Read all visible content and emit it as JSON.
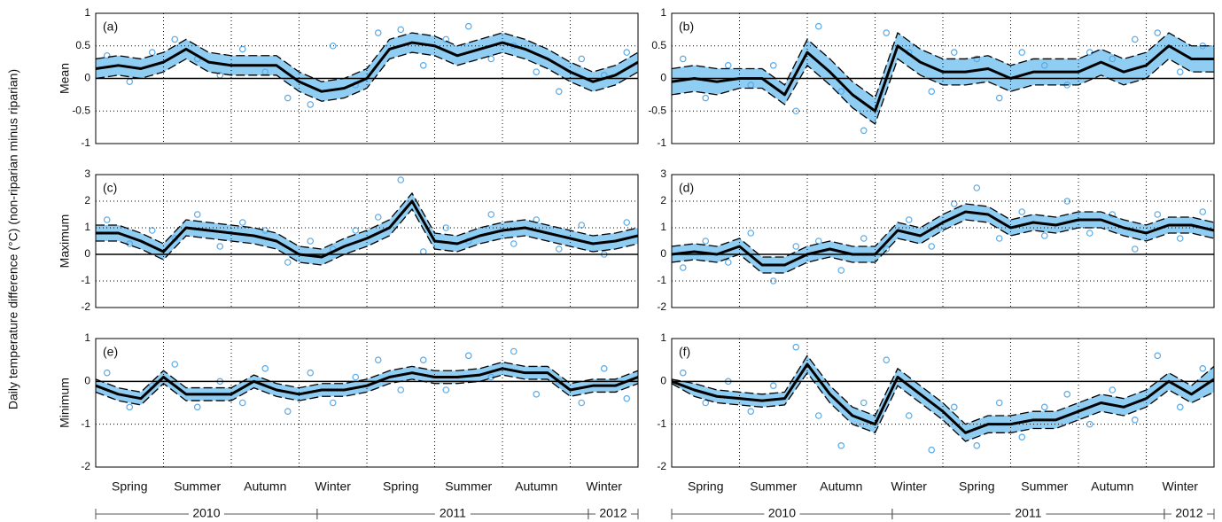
{
  "figure_ylabel": "Daily temperature difference (°C) (non-riparian minus riparian)",
  "chart_data": [
    {
      "type": "line",
      "title": "(a)",
      "ylabel": "Mean",
      "ylim": [
        -1,
        1
      ],
      "yticks": [
        1,
        0.5,
        0,
        -0.5,
        -1
      ],
      "xlim": [
        0,
        24
      ],
      "xgrid": [
        3,
        6,
        9,
        12,
        15,
        18,
        21
      ],
      "grid": true,
      "color": "#000000",
      "band_color": "#8fcdf2",
      "point_color": "#5aaae6",
      "x": [
        0,
        1,
        2,
        3,
        4,
        5,
        6,
        7,
        8,
        9,
        10,
        11,
        12,
        13,
        14,
        15,
        16,
        17,
        18,
        19,
        20,
        21,
        22,
        23,
        24
      ],
      "values": [
        0.15,
        0.2,
        0.15,
        0.25,
        0.45,
        0.25,
        0.2,
        0.2,
        0.2,
        -0.05,
        -0.2,
        -0.15,
        0.0,
        0.45,
        0.55,
        0.5,
        0.35,
        0.45,
        0.55,
        0.45,
        0.3,
        0.1,
        -0.05,
        0.05,
        0.25
      ],
      "upper": [
        0.3,
        0.35,
        0.3,
        0.4,
        0.6,
        0.4,
        0.35,
        0.35,
        0.35,
        0.1,
        -0.05,
        0.0,
        0.15,
        0.6,
        0.7,
        0.65,
        0.5,
        0.6,
        0.7,
        0.6,
        0.45,
        0.25,
        0.1,
        0.2,
        0.4
      ],
      "lower": [
        0.0,
        0.05,
        0.0,
        0.1,
        0.3,
        0.1,
        0.05,
        0.05,
        0.05,
        -0.2,
        -0.35,
        -0.3,
        -0.15,
        0.3,
        0.4,
        0.35,
        0.2,
        0.3,
        0.4,
        0.3,
        0.15,
        -0.05,
        -0.2,
        -0.1,
        0.1
      ],
      "points_x": [
        0.5,
        1.5,
        2.5,
        3.5,
        4.5,
        5.5,
        6.5,
        7.5,
        8.5,
        9.5,
        10.5,
        11.5,
        12.5,
        13.5,
        14.5,
        15.5,
        16.5,
        17.5,
        18.5,
        19.5,
        20.5,
        21.5,
        22.5,
        23.5
      ],
      "points_y": [
        0.35,
        -0.05,
        0.4,
        0.6,
        0.3,
        0.05,
        0.45,
        0.1,
        -0.3,
        -0.4,
        0.5,
        -0.1,
        0.7,
        0.75,
        0.2,
        0.6,
        0.8,
        0.3,
        0.5,
        0.1,
        -0.2,
        0.3,
        0.05,
        0.4
      ]
    },
    {
      "type": "line",
      "title": "(b)",
      "ylim": [
        -1,
        1
      ],
      "yticks": [
        1,
        0.5,
        0,
        -0.5,
        -1
      ],
      "xlim": [
        0,
        24
      ],
      "xgrid": [
        3,
        6,
        9,
        12,
        15,
        18,
        21
      ],
      "grid": true,
      "color": "#000000",
      "band_color": "#8fcdf2",
      "point_color": "#5aaae6",
      "x": [
        0,
        1,
        2,
        3,
        4,
        5,
        6,
        7,
        8,
        9,
        10,
        11,
        12,
        13,
        14,
        15,
        16,
        17,
        18,
        19,
        20,
        21,
        22,
        23,
        24
      ],
      "values": [
        -0.05,
        0.0,
        -0.05,
        0.0,
        0.0,
        -0.25,
        0.4,
        0.1,
        -0.25,
        -0.5,
        0.5,
        0.25,
        0.1,
        0.1,
        0.15,
        0.0,
        0.1,
        0.1,
        0.1,
        0.25,
        0.1,
        0.2,
        0.5,
        0.3,
        0.3
      ],
      "upper": [
        0.15,
        0.2,
        0.15,
        0.15,
        0.15,
        -0.1,
        0.6,
        0.3,
        -0.05,
        -0.3,
        0.7,
        0.45,
        0.3,
        0.3,
        0.35,
        0.2,
        0.3,
        0.3,
        0.3,
        0.45,
        0.3,
        0.4,
        0.7,
        0.5,
        0.5
      ],
      "lower": [
        -0.25,
        -0.2,
        -0.25,
        -0.15,
        -0.15,
        -0.4,
        0.2,
        -0.1,
        -0.45,
        -0.7,
        0.3,
        0.05,
        -0.1,
        -0.1,
        -0.05,
        -0.2,
        -0.1,
        -0.1,
        -0.1,
        0.05,
        -0.1,
        0.0,
        0.3,
        0.1,
        0.1
      ],
      "points_x": [
        0.5,
        1.5,
        2.5,
        3.5,
        4.5,
        5.5,
        6.5,
        7.5,
        8.5,
        9.5,
        10.5,
        11.5,
        12.5,
        13.5,
        14.5,
        15.5,
        16.5,
        17.5,
        18.5,
        19.5,
        20.5,
        21.5,
        22.5,
        23.5
      ],
      "points_y": [
        0.3,
        -0.3,
        0.2,
        -0.1,
        0.2,
        -0.5,
        0.8,
        -0.2,
        -0.8,
        0.7,
        0.4,
        -0.2,
        0.4,
        0.3,
        -0.3,
        0.4,
        0.2,
        -0.1,
        0.4,
        0.3,
        0.6,
        0.7,
        0.1,
        0.5
      ]
    },
    {
      "type": "line",
      "title": "(c)",
      "ylabel": "Maximum",
      "ylim": [
        -2,
        3
      ],
      "yticks": [
        3,
        2,
        1,
        0,
        -1,
        -2
      ],
      "xlim": [
        0,
        24
      ],
      "xgrid": [
        3,
        6,
        9,
        12,
        15,
        18,
        21
      ],
      "grid": true,
      "color": "#000000",
      "band_color": "#8fcdf2",
      "point_color": "#5aaae6",
      "x": [
        0,
        1,
        2,
        3,
        4,
        5,
        6,
        7,
        8,
        9,
        10,
        11,
        12,
        13,
        14,
        15,
        16,
        17,
        18,
        19,
        20,
        21,
        22,
        23,
        24
      ],
      "values": [
        0.8,
        0.8,
        0.5,
        0.1,
        1.0,
        0.9,
        0.8,
        0.7,
        0.5,
        0.0,
        -0.1,
        0.3,
        0.6,
        1.0,
        2.0,
        0.5,
        0.4,
        0.7,
        0.9,
        1.0,
        0.8,
        0.6,
        0.4,
        0.5,
        0.7
      ],
      "upper": [
        1.1,
        1.1,
        0.8,
        0.4,
        1.3,
        1.2,
        1.1,
        1.0,
        0.8,
        0.3,
        0.2,
        0.6,
        0.9,
        1.3,
        2.3,
        0.8,
        0.7,
        1.0,
        1.2,
        1.3,
        1.1,
        0.9,
        0.7,
        0.8,
        1.0
      ],
      "lower": [
        0.5,
        0.5,
        0.2,
        -0.2,
        0.7,
        0.6,
        0.5,
        0.4,
        0.2,
        -0.3,
        -0.4,
        0.0,
        0.3,
        0.7,
        1.7,
        0.2,
        0.1,
        0.4,
        0.6,
        0.7,
        0.5,
        0.3,
        0.1,
        0.2,
        0.4
      ],
      "points_x": [
        0.5,
        1.5,
        2.5,
        3.5,
        4.5,
        5.5,
        6.5,
        7.5,
        8.5,
        9.5,
        10.5,
        11.5,
        12.5,
        13.5,
        14.5,
        15.5,
        16.5,
        17.5,
        18.5,
        19.5,
        20.5,
        21.5,
        22.5,
        23.5
      ],
      "points_y": [
        1.3,
        0.4,
        0.9,
        0.6,
        1.5,
        0.3,
        1.2,
        0.9,
        -0.3,
        0.5,
        0.2,
        0.9,
        1.4,
        2.8,
        0.1,
        1.0,
        0.5,
        1.5,
        0.4,
        1.3,
        0.2,
        1.1,
        0.0,
        1.2
      ]
    },
    {
      "type": "line",
      "title": "(d)",
      "ylim": [
        -2,
        3
      ],
      "yticks": [
        3,
        2,
        1,
        0,
        -1,
        -2
      ],
      "xlim": [
        0,
        24
      ],
      "xgrid": [
        3,
        6,
        9,
        12,
        15,
        18,
        21
      ],
      "grid": true,
      "color": "#000000",
      "band_color": "#8fcdf2",
      "point_color": "#5aaae6",
      "x": [
        0,
        1,
        2,
        3,
        4,
        5,
        6,
        7,
        8,
        9,
        10,
        11,
        12,
        13,
        14,
        15,
        16,
        17,
        18,
        19,
        20,
        21,
        22,
        23,
        24
      ],
      "values": [
        0.0,
        0.1,
        0.0,
        0.3,
        -0.4,
        -0.4,
        0.0,
        0.2,
        0.0,
        0.0,
        0.9,
        0.7,
        1.2,
        1.6,
        1.5,
        1.0,
        1.2,
        1.1,
        1.3,
        1.3,
        1.0,
        0.8,
        1.1,
        1.1,
        0.9
      ],
      "upper": [
        0.3,
        0.4,
        0.3,
        0.6,
        -0.1,
        -0.1,
        0.3,
        0.5,
        0.3,
        0.3,
        1.2,
        1.0,
        1.5,
        1.9,
        1.8,
        1.3,
        1.5,
        1.4,
        1.6,
        1.6,
        1.3,
        1.1,
        1.4,
        1.4,
        1.2
      ],
      "lower": [
        -0.3,
        -0.2,
        -0.3,
        0.0,
        -0.7,
        -0.7,
        -0.3,
        -0.1,
        -0.3,
        -0.3,
        0.6,
        0.4,
        0.9,
        1.3,
        1.2,
        0.7,
        0.9,
        0.8,
        1.0,
        1.0,
        0.7,
        0.5,
        0.8,
        0.8,
        0.6
      ],
      "points_x": [
        0.5,
        1.5,
        2.5,
        3.5,
        4.5,
        5.5,
        6.5,
        7.5,
        8.5,
        9.5,
        10.5,
        11.5,
        12.5,
        13.5,
        14.5,
        15.5,
        16.5,
        17.5,
        18.5,
        19.5,
        20.5,
        21.5,
        22.5,
        23.5
      ],
      "points_y": [
        -0.5,
        0.5,
        -0.3,
        0.8,
        -1.0,
        0.3,
        0.5,
        -0.6,
        0.6,
        0.2,
        1.3,
        0.3,
        1.9,
        2.5,
        0.6,
        1.6,
        0.7,
        2.0,
        0.8,
        1.5,
        0.2,
        1.5,
        0.6,
        1.6
      ]
    },
    {
      "type": "line",
      "title": "(e)",
      "ylabel": "Minimum",
      "ylim": [
        -2,
        1
      ],
      "yticks": [
        1,
        0,
        -1,
        -2
      ],
      "xlim": [
        0,
        24
      ],
      "xgrid": [
        3,
        6,
        9,
        12,
        15,
        18,
        21
      ],
      "grid": true,
      "color": "#000000",
      "band_color": "#8fcdf2",
      "point_color": "#5aaae6",
      "x": [
        0,
        1,
        2,
        3,
        4,
        5,
        6,
        7,
        8,
        9,
        10,
        11,
        12,
        13,
        14,
        15,
        16,
        17,
        18,
        19,
        20,
        21,
        22,
        23,
        24
      ],
      "values": [
        -0.1,
        -0.3,
        -0.4,
        0.1,
        -0.3,
        -0.3,
        -0.3,
        0.0,
        -0.2,
        -0.3,
        -0.2,
        -0.2,
        -0.1,
        0.1,
        0.2,
        0.1,
        0.1,
        0.15,
        0.3,
        0.2,
        0.2,
        -0.2,
        -0.1,
        -0.1,
        0.1
      ],
      "upper": [
        0.05,
        -0.15,
        -0.25,
        0.25,
        -0.15,
        -0.15,
        -0.15,
        0.15,
        -0.05,
        -0.15,
        -0.05,
        -0.05,
        0.05,
        0.25,
        0.35,
        0.25,
        0.25,
        0.3,
        0.45,
        0.35,
        0.35,
        -0.05,
        0.05,
        0.05,
        0.25
      ],
      "lower": [
        -0.25,
        -0.45,
        -0.55,
        -0.05,
        -0.45,
        -0.45,
        -0.45,
        -0.15,
        -0.35,
        -0.45,
        -0.35,
        -0.35,
        -0.25,
        -0.05,
        0.05,
        -0.05,
        -0.05,
        0.0,
        0.15,
        0.05,
        0.05,
        -0.35,
        -0.25,
        -0.25,
        -0.05
      ],
      "points_x": [
        0.5,
        1.5,
        2.5,
        3.5,
        4.5,
        5.5,
        6.5,
        7.5,
        8.5,
        9.5,
        10.5,
        11.5,
        12.5,
        13.5,
        14.5,
        15.5,
        16.5,
        17.5,
        18.5,
        19.5,
        20.5,
        21.5,
        22.5,
        23.5
      ],
      "points_y": [
        0.2,
        -0.6,
        -0.1,
        0.4,
        -0.6,
        0.0,
        -0.5,
        0.3,
        -0.7,
        0.2,
        -0.5,
        0.1,
        0.5,
        -0.2,
        0.5,
        -0.2,
        0.6,
        0.1,
        0.7,
        -0.3,
        0.0,
        -0.5,
        0.3,
        -0.4
      ],
      "xticks": [
        {
          "value": 1.5,
          "label": "Spring"
        },
        {
          "value": 4.5,
          "label": "Summer"
        },
        {
          "value": 7.5,
          "label": "Autumn"
        },
        {
          "value": 10.5,
          "label": "Winter"
        },
        {
          "value": 13.5,
          "label": "Spring"
        },
        {
          "value": 16.5,
          "label": "Summer"
        },
        {
          "value": 19.5,
          "label": "Autumn"
        },
        {
          "value": 22.5,
          "label": "Winter"
        }
      ],
      "years": [
        {
          "label": "2010",
          "start": 0,
          "end": 9.8
        },
        {
          "label": "2011",
          "start": 9.8,
          "end": 21.8
        },
        {
          "label": "2012",
          "start": 21.8,
          "end": 24
        }
      ]
    },
    {
      "type": "line",
      "title": "(f)",
      "ylim": [
        -2,
        1
      ],
      "yticks": [
        1,
        0,
        -1,
        -2
      ],
      "xlim": [
        0,
        24
      ],
      "xgrid": [
        3,
        6,
        9,
        12,
        15,
        18,
        21
      ],
      "grid": true,
      "color": "#000000",
      "band_color": "#8fcdf2",
      "point_color": "#5aaae6",
      "x": [
        0,
        1,
        2,
        3,
        4,
        5,
        6,
        7,
        8,
        9,
        10,
        11,
        12,
        13,
        14,
        15,
        16,
        17,
        18,
        19,
        20,
        21,
        22,
        23,
        24
      ],
      "values": [
        0.0,
        -0.2,
        -0.35,
        -0.4,
        -0.45,
        -0.4,
        0.4,
        -0.3,
        -0.8,
        -1.0,
        0.1,
        -0.3,
        -0.7,
        -1.2,
        -1.0,
        -1.0,
        -0.9,
        -0.9,
        -0.7,
        -0.5,
        -0.6,
        -0.4,
        0.0,
        -0.3,
        0.05
      ],
      "upper": [
        0.05,
        -0.05,
        -0.2,
        -0.25,
        -0.3,
        -0.25,
        0.6,
        -0.1,
        -0.6,
        -0.8,
        0.3,
        -0.1,
        -0.5,
        -1.0,
        -0.8,
        -0.8,
        -0.7,
        -0.7,
        -0.5,
        -0.3,
        -0.4,
        -0.2,
        0.2,
        -0.1,
        0.35
      ],
      "lower": [
        -0.05,
        -0.35,
        -0.5,
        -0.55,
        -0.6,
        -0.55,
        0.2,
        -0.5,
        -1.0,
        -1.2,
        -0.1,
        -0.5,
        -0.9,
        -1.4,
        -1.2,
        -1.2,
        -1.1,
        -1.1,
        -0.9,
        -0.7,
        -0.8,
        -0.6,
        -0.2,
        -0.5,
        -0.25
      ],
      "points_x": [
        0.5,
        1.5,
        2.5,
        3.5,
        4.5,
        5.5,
        6.5,
        7.5,
        8.5,
        9.5,
        10.5,
        11.5,
        12.5,
        13.5,
        14.5,
        15.5,
        16.5,
        17.5,
        18.5,
        19.5,
        20.5,
        21.5,
        22.5,
        23.5
      ],
      "points_y": [
        0.2,
        -0.5,
        0.0,
        -0.7,
        -0.1,
        0.8,
        -0.8,
        -1.5,
        -0.5,
        0.5,
        -0.8,
        -1.6,
        -0.6,
        -1.5,
        -0.5,
        -1.3,
        -0.6,
        -0.3,
        -1.0,
        -0.2,
        -0.9,
        0.6,
        -0.6,
        0.3
      ],
      "xticks": [
        {
          "value": 1.5,
          "label": "Spring"
        },
        {
          "value": 4.5,
          "label": "Summer"
        },
        {
          "value": 7.5,
          "label": "Autumn"
        },
        {
          "value": 10.5,
          "label": "Winter"
        },
        {
          "value": 13.5,
          "label": "Spring"
        },
        {
          "value": 16.5,
          "label": "Summer"
        },
        {
          "value": 19.5,
          "label": "Autumn"
        },
        {
          "value": 22.5,
          "label": "Winter"
        }
      ],
      "years": [
        {
          "label": "2010",
          "start": 0,
          "end": 9.76
        },
        {
          "label": "2011",
          "start": 9.76,
          "end": 21.8
        },
        {
          "label": "2012",
          "start": 21.8,
          "end": 24
        }
      ]
    }
  ]
}
